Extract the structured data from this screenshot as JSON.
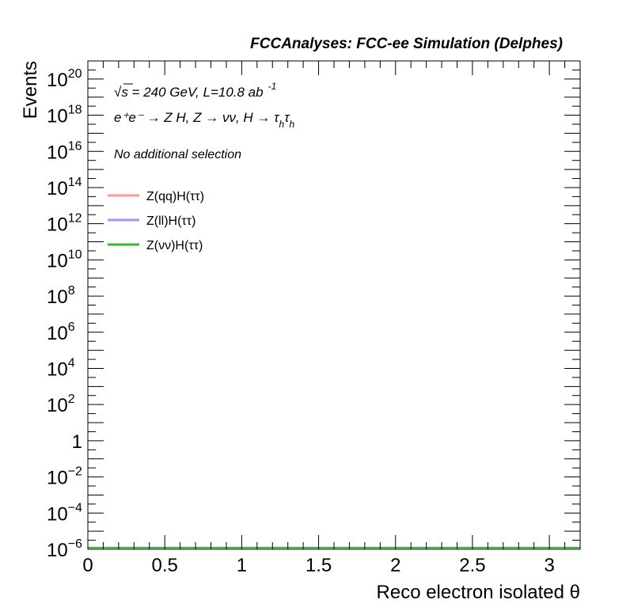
{
  "chart_data": {
    "type": "line",
    "title": "FCCAnalyses: FCC-ee Simulation (Delphes)",
    "annotations": {
      "energy_line": "√s = 240 GeV, L=10.8 ab",
      "energy_sup": "-1",
      "process_line": "e⁺e⁻ → Z H, Z → νν, H → τ",
      "process_sub1": "h",
      "process_tau2": "τ",
      "process_sub2": "h",
      "selection": "No additional selection"
    },
    "xlabel": "Reco electron isolated θ",
    "ylabel": "Events",
    "xlim": [
      0,
      3.2
    ],
    "ylim": [
      1e-06,
      1e+21
    ],
    "yscale": "log",
    "x_ticks": [
      {
        "value": 0,
        "label": "0"
      },
      {
        "value": 0.5,
        "label": "0.5"
      },
      {
        "value": 1,
        "label": "1"
      },
      {
        "value": 1.5,
        "label": "1.5"
      },
      {
        "value": 2,
        "label": "2"
      },
      {
        "value": 2.5,
        "label": "2.5"
      },
      {
        "value": 3,
        "label": "3"
      }
    ],
    "y_ticks": [
      {
        "exp": -6,
        "base": "10",
        "sup": "−6"
      },
      {
        "exp": -4,
        "base": "10",
        "sup": "−4"
      },
      {
        "exp": -2,
        "base": "10",
        "sup": "−2"
      },
      {
        "exp": 0,
        "base": "1",
        "sup": ""
      },
      {
        "exp": 2,
        "base": "10",
        "sup": "2"
      },
      {
        "exp": 4,
        "base": "10",
        "sup": "4"
      },
      {
        "exp": 6,
        "base": "10",
        "sup": "6"
      },
      {
        "exp": 8,
        "base": "10",
        "sup": "8"
      },
      {
        "exp": 10,
        "base": "10",
        "sup": "10"
      },
      {
        "exp": 12,
        "base": "10",
        "sup": "12"
      },
      {
        "exp": 14,
        "base": "10",
        "sup": "14"
      },
      {
        "exp": 16,
        "base": "10",
        "sup": "16"
      },
      {
        "exp": 18,
        "base": "10",
        "sup": "18"
      },
      {
        "exp": 20,
        "base": "10",
        "sup": "20"
      }
    ],
    "legend_position": "top-left",
    "grid": false,
    "series": [
      {
        "name": "Z(qq)H(ττ)",
        "color": "#ff9999",
        "x": [
          0,
          3.2
        ],
        "y": [
          1e-06,
          1e-06
        ]
      },
      {
        "name": "Z(ll)H(ττ)",
        "color": "#9999ff",
        "x": [
          0,
          3.2
        ],
        "y": [
          1e-06,
          1e-06
        ]
      },
      {
        "name": "Z(νν)H(ττ)",
        "color": "#33bb33",
        "x": [
          0,
          3.2
        ],
        "y": [
          1e-06,
          1e-06
        ]
      }
    ]
  }
}
